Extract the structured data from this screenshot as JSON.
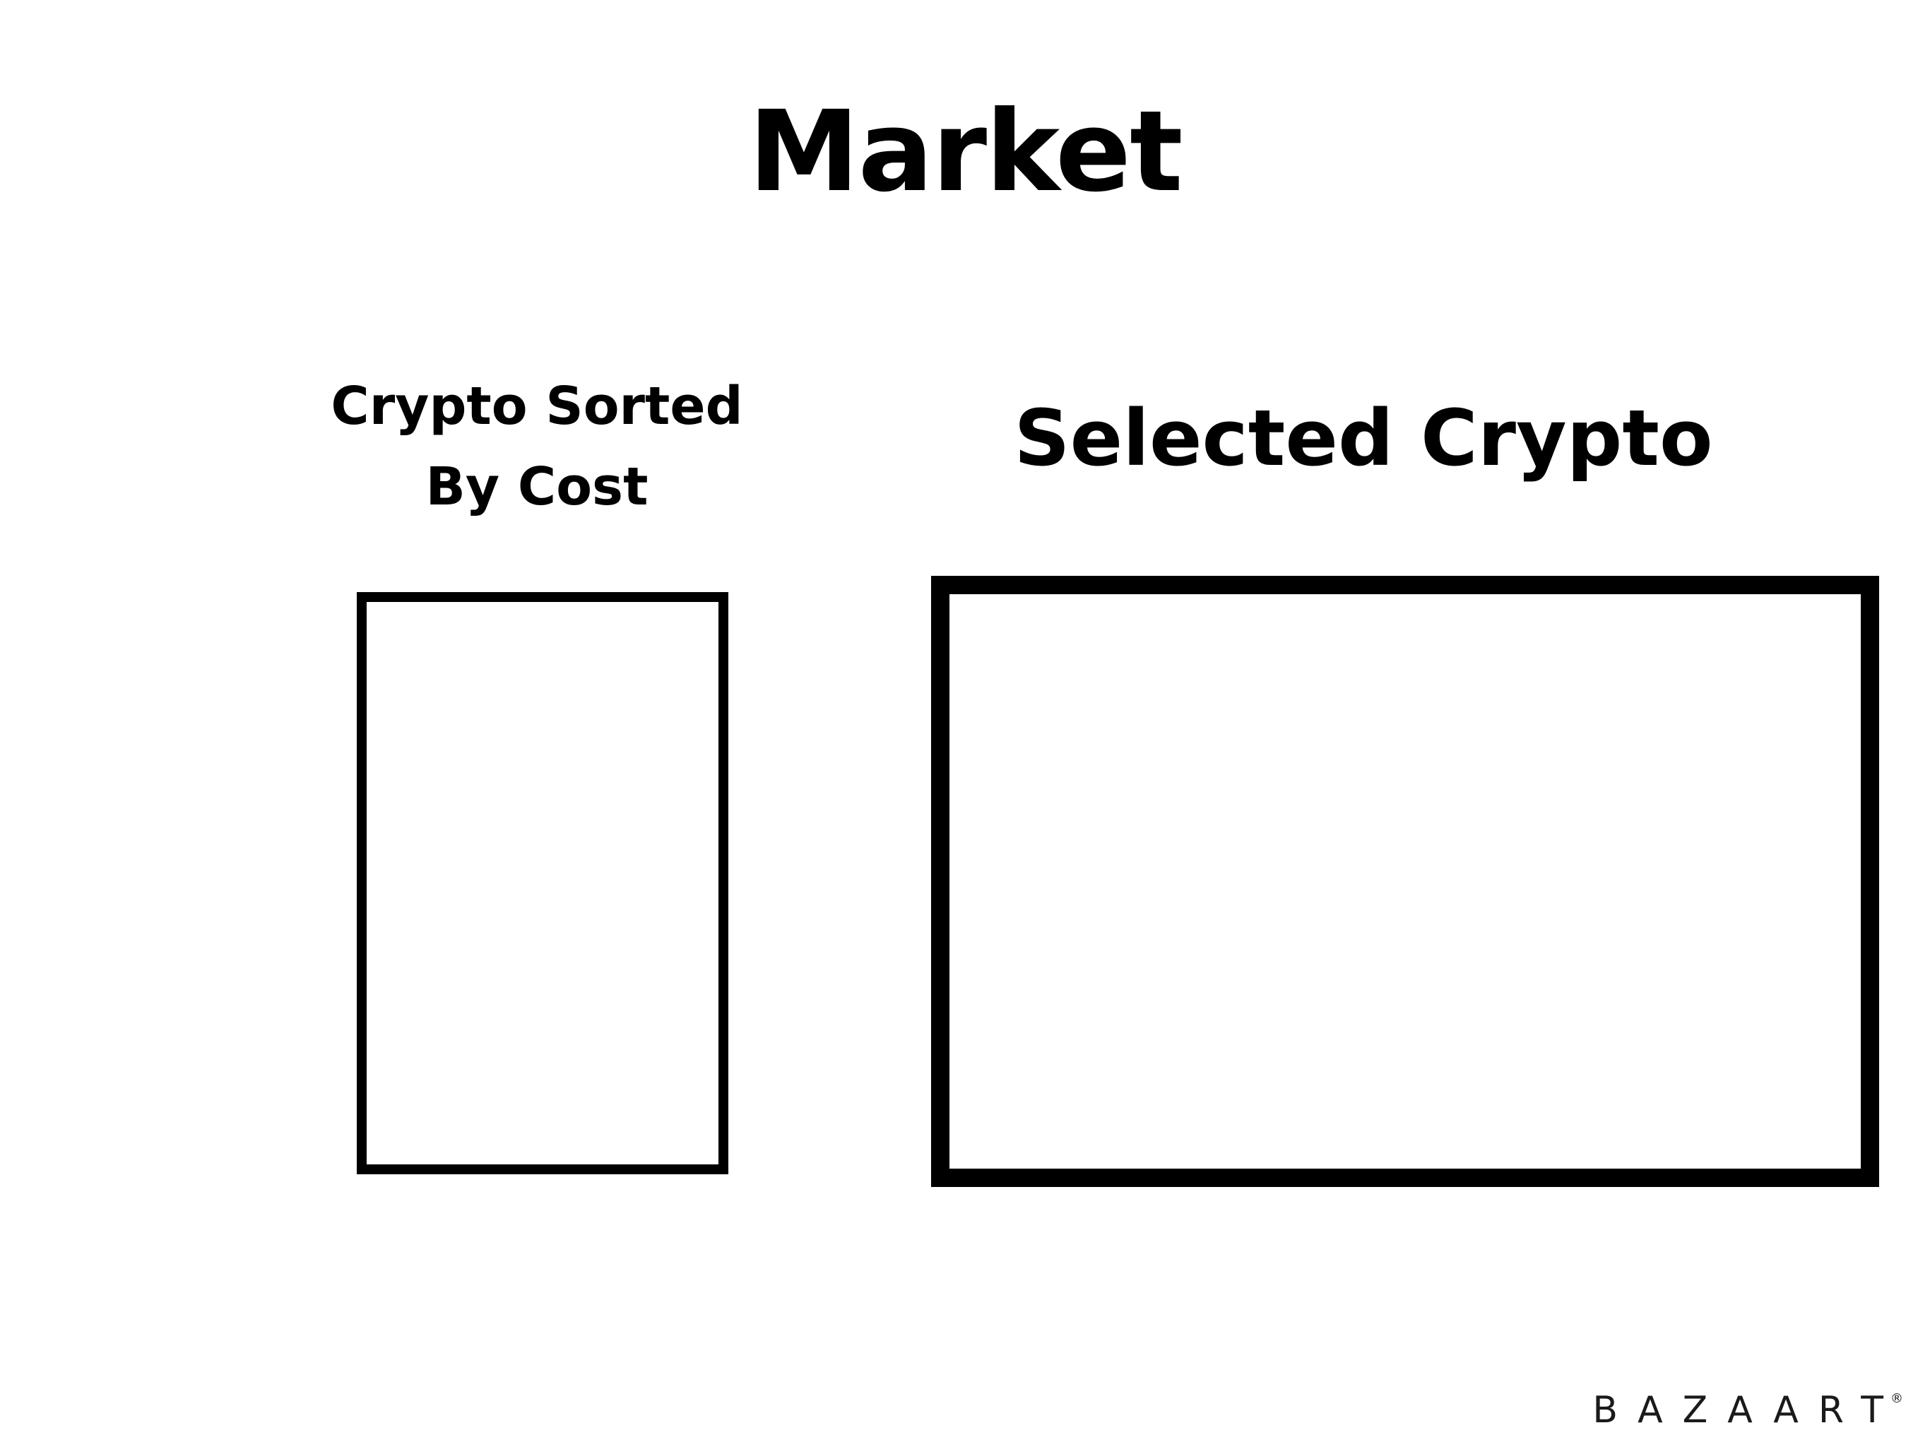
{
  "header": {
    "title": "Market"
  },
  "sorted_list": {
    "heading_line1": "Crypto Sorted",
    "heading_line2": "By Cost"
  },
  "selected": {
    "heading": "Selected Crypto"
  },
  "watermark": {
    "text": "BAZAART",
    "mark": "®"
  },
  "colors": {
    "background": "#ffffff",
    "foreground": "#000000"
  }
}
